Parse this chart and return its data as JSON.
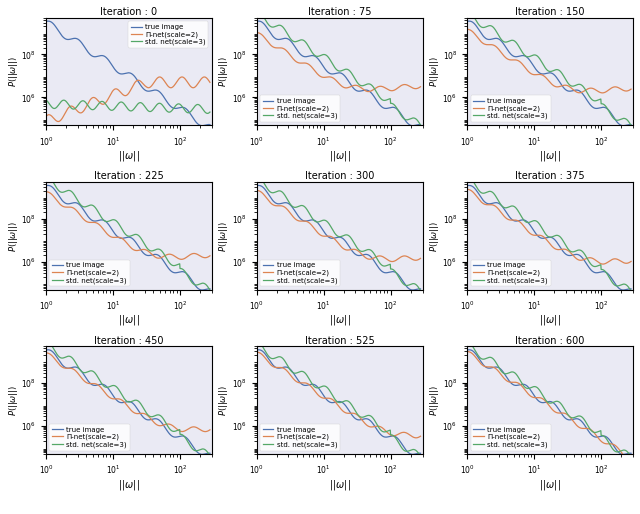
{
  "iterations": [
    0,
    75,
    150,
    225,
    300,
    375,
    450,
    525,
    600
  ],
  "nrows": 3,
  "ncols": 3,
  "colors": {
    "true_image": "#4c72b0",
    "pi_net": "#dd8452",
    "std_net": "#55a868"
  },
  "legend_labels": [
    "true image",
    "Π-net(scale=2)",
    "std. net(scale=3)"
  ],
  "xlabel": "$||\\omega||$",
  "ylabel": "$P(||\\omega||)$",
  "xlim": [
    1,
    300
  ],
  "ylim": [
    50000.0,
    5000000000.0
  ],
  "background_color": "#eaeaf4",
  "figsize": [
    6.4,
    5.14
  ],
  "dpi": 100
}
